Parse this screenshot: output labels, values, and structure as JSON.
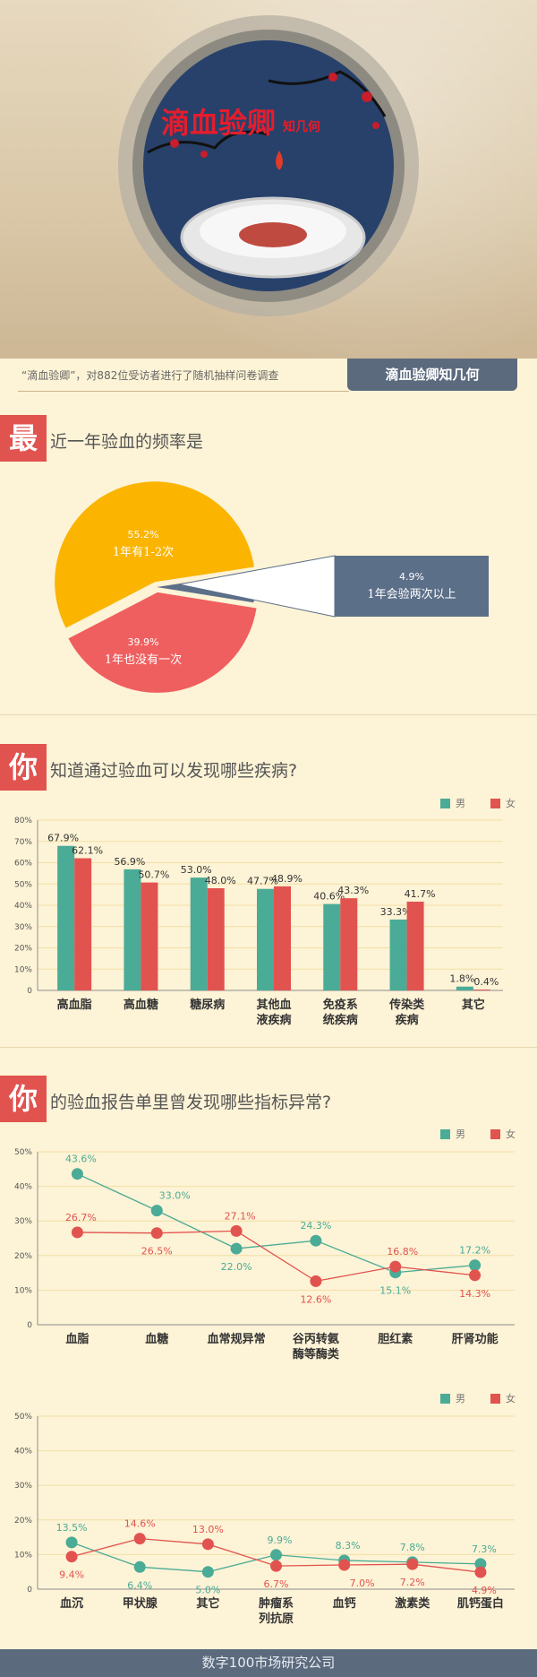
{
  "hero": {
    "title": "滴血验卿",
    "subtitle": "知几何"
  },
  "intro": {
    "text": "“滴血验卿”，对882位受访者进行了随机抽样问卷调查",
    "tab_label": "滴血验卿知几何"
  },
  "sections": [
    {
      "badge": "最",
      "title": "近一年验血的频率是"
    },
    {
      "badge": "你",
      "title": "知道通过验血可以发现哪些疾病?"
    },
    {
      "badge": "你",
      "title": "的验血报告单里曾发现哪些指标异常?"
    }
  ],
  "footer": {
    "text": "数字100市场研究公司"
  },
  "colors": {
    "male": "#4aab96",
    "female": "#e1534f",
    "pie_yellow": "#fbb400",
    "pie_red": "#f05f5f",
    "pie_slate": "#5c6f88",
    "badge": "#e1534f"
  },
  "chart_data": [
    {
      "type": "pie",
      "slices": [
        {
          "label": "1年有1-2次",
          "value": 55.2,
          "display": "55.2%"
        },
        {
          "label": "1年也没有一次",
          "value": 39.9,
          "display": "39.9%"
        },
        {
          "label": "1年会验两次以上",
          "value": 4.9,
          "display": "4.9%"
        }
      ]
    },
    {
      "type": "bar",
      "categories": [
        "高血脂",
        "高血糖",
        "糖尿病",
        "其他血液疾病",
        "免疫系统疾病",
        "传染类疾病",
        "其它"
      ],
      "category_lines": [
        [
          "高血脂"
        ],
        [
          "高血糖"
        ],
        [
          "糖尿病"
        ],
        [
          "其他血",
          "液疾病"
        ],
        [
          "免疫系",
          "统疾病"
        ],
        [
          "传染类",
          "疾病"
        ],
        [
          "其它"
        ]
      ],
      "series": [
        {
          "name": "男",
          "values": [
            67.9,
            56.9,
            53.0,
            47.7,
            40.6,
            33.3,
            1.8
          ],
          "labels": [
            "67.9%",
            "56.9%",
            "53.0%",
            "47.7%",
            "40.6%",
            "33.3%",
            "1.8%"
          ]
        },
        {
          "name": "女",
          "values": [
            62.1,
            50.7,
            48.0,
            48.9,
            43.3,
            41.7,
            0.4
          ],
          "labels": [
            "62.1%",
            "50.7%",
            "48.0%",
            "48.9%",
            "43.3%",
            "41.7%",
            "0.4%"
          ]
        }
      ],
      "ylim": [
        0,
        80
      ],
      "yticks": [
        "0",
        "10%",
        "20%",
        "30%",
        "40%",
        "50%",
        "60%",
        "70%",
        "80%"
      ],
      "legend": "top-right"
    },
    {
      "type": "line",
      "categories": [
        "血脂",
        "血糖",
        "血常规异常",
        "谷丙转氨酶等酶类",
        "胆红素",
        "肝肾功能"
      ],
      "category_lines": [
        [
          "血脂"
        ],
        [
          "血糖"
        ],
        [
          "血常规异常"
        ],
        [
          "谷丙转氨",
          "酶等酶类"
        ],
        [
          "胆红素"
        ],
        [
          "肝肾功能"
        ]
      ],
      "series": [
        {
          "name": "男",
          "values": [
            43.6,
            33.0,
            22.0,
            24.3,
            15.1,
            17.2
          ],
          "labels": [
            "43.6%",
            "33.0%",
            "22.0%",
            "24.3%",
            "15.1%",
            "17.2%"
          ]
        },
        {
          "name": "女",
          "values": [
            26.7,
            26.5,
            27.1,
            12.6,
            16.8,
            14.3
          ],
          "labels": [
            "26.7%",
            "26.5%",
            "27.1%",
            "12.6%",
            "16.8%",
            "14.3%"
          ]
        }
      ],
      "ylim": [
        0,
        50
      ],
      "yticks": [
        "0",
        "10%",
        "20%",
        "30%",
        "40%",
        "50%"
      ],
      "legend": "top-right"
    },
    {
      "type": "line",
      "categories": [
        "血沉",
        "甲状腺",
        "其它",
        "肿瘤系列抗原",
        "血钙",
        "激素类",
        "肌钙蛋白"
      ],
      "category_lines": [
        [
          "血沉"
        ],
        [
          "甲状腺"
        ],
        [
          "其它"
        ],
        [
          "肿瘤系",
          "列抗原"
        ],
        [
          "血钙"
        ],
        [
          "激素类"
        ],
        [
          "肌钙蛋白"
        ]
      ],
      "series": [
        {
          "name": "男",
          "values": [
            13.5,
            6.4,
            5.0,
            9.9,
            8.3,
            7.8,
            7.3
          ],
          "labels": [
            "13.5%",
            "6.4%",
            "5.0%",
            "9.9%",
            "8.3%",
            "7.8%",
            "7.3%"
          ]
        },
        {
          "name": "女",
          "values": [
            9.4,
            14.6,
            13.0,
            6.7,
            7.0,
            7.2,
            4.9
          ],
          "labels": [
            "9.4%",
            "14.6%",
            "13.0%",
            "6.7%",
            "7.0%",
            "7.2%",
            "4.9%"
          ]
        }
      ],
      "ylim": [
        0,
        50
      ],
      "yticks": [
        "0",
        "10%",
        "20%",
        "30%",
        "40%",
        "50%"
      ],
      "legend": "top-right"
    }
  ]
}
